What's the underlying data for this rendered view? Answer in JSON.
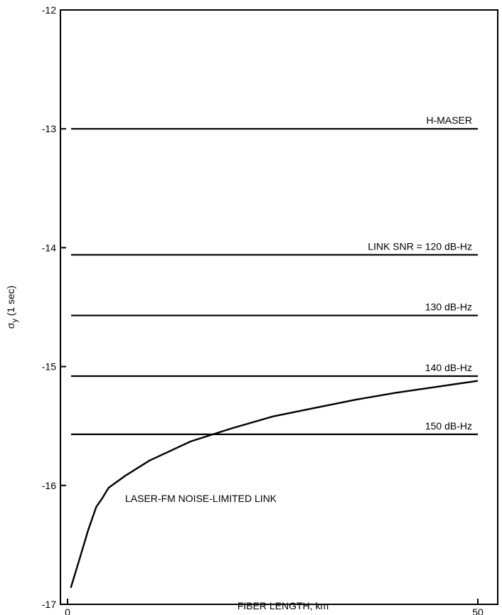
{
  "chart_data": {
    "type": "line",
    "title": "",
    "xlabel": "FIBER LENGTH, km",
    "ylabel_main": "σ",
    "ylabel_sub": "y",
    "ylabel_rest": " (1 sec)",
    "xlim": [
      0,
      50
    ],
    "ylim": [
      -17,
      -12
    ],
    "grid": false,
    "x_ticks": [
      0,
      50
    ],
    "y_ticks": [
      -12,
      -13,
      -14,
      -15,
      -16,
      -17
    ],
    "horizontal_lines": [
      {
        "label": "H-MASER",
        "y": -13.0
      },
      {
        "label": "LINK SNR = 120 dB-Hz",
        "y": -14.06
      },
      {
        "label": "130 dB-Hz",
        "y": -14.57
      },
      {
        "label": "140 dB-Hz",
        "y": -15.08
      },
      {
        "label": "150 dB-Hz",
        "y": -15.57
      }
    ],
    "curve": {
      "label": "LASER-FM NOISE-LIMITED LINK",
      "x": [
        0.4,
        1.5,
        2.5,
        3.5,
        4.2,
        5,
        7,
        10,
        15,
        20,
        25,
        30,
        35,
        40,
        45,
        50
      ],
      "y": [
        -16.86,
        -16.61,
        -16.38,
        -16.18,
        -16.11,
        -16.02,
        -15.92,
        -15.79,
        -15.63,
        -15.52,
        -15.42,
        -15.35,
        -15.28,
        -15.22,
        -15.17,
        -15.12
      ]
    }
  }
}
